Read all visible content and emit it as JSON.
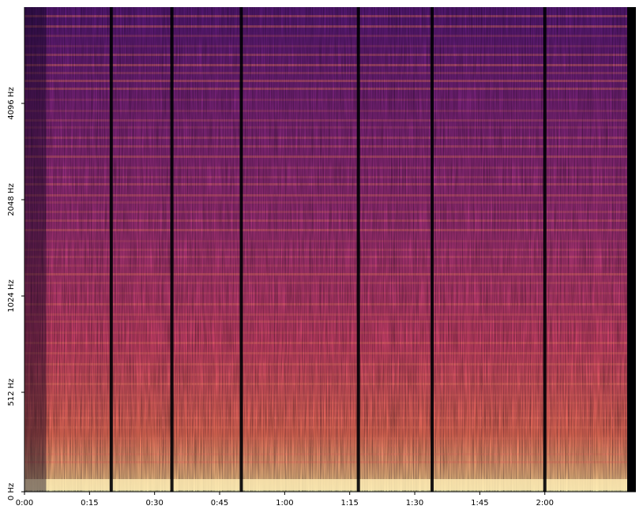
{
  "chart_data": {
    "type": "heatmap",
    "title": "",
    "xlabel": "",
    "ylabel": "",
    "colormap": "magma",
    "x_axis": {
      "unit": "seconds",
      "range": [
        0,
        141
      ],
      "ticks": [
        {
          "value": 0,
          "label": "0:00"
        },
        {
          "value": 15,
          "label": "0:15"
        },
        {
          "value": 30,
          "label": "0:30"
        },
        {
          "value": 45,
          "label": "0:45"
        },
        {
          "value": 60,
          "label": "1:00"
        },
        {
          "value": 75,
          "label": "1:15"
        },
        {
          "value": 90,
          "label": "1:30"
        },
        {
          "value": 105,
          "label": "1:45"
        },
        {
          "value": 120,
          "label": "2:00"
        }
      ]
    },
    "y_axis": {
      "scale": "log2",
      "unit": "Hz",
      "range": [
        0,
        11025
      ],
      "ticks": [
        {
          "value": 0,
          "label": "0 Hz"
        },
        {
          "value": 512,
          "label": "512 Hz"
        },
        {
          "value": 1024,
          "label": "1024 Hz"
        },
        {
          "value": 2048,
          "label": "2048 Hz"
        },
        {
          "value": 4096,
          "label": "4096 Hz"
        }
      ]
    },
    "gaps_seconds": [
      20,
      34,
      50,
      77,
      94,
      120
    ],
    "silent_tail_start": 139
  }
}
